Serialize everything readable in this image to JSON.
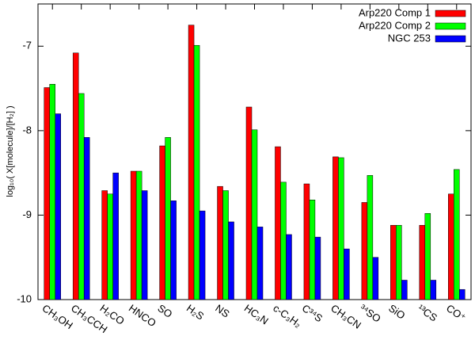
{
  "chart_data": {
    "type": "bar",
    "y_label": "log₁₀( X[molecule]/[H₂] )",
    "categories": [
      "CH₃OH",
      "CH₃CCH",
      "H₂CO",
      "HNCO",
      "SO",
      "H₂S",
      "NS",
      "HC₃N",
      "c-C₃H₂",
      "C³⁴S",
      "CH₃CN",
      "³⁴SO",
      "SiO",
      "¹³CS",
      "CO⁺"
    ],
    "series": [
      {
        "name": "Arp220 Comp 1",
        "color": "#ff0000",
        "values": [
          -7.49,
          -7.08,
          -8.71,
          -8.48,
          -8.18,
          -6.75,
          -8.66,
          -7.72,
          -8.19,
          -8.63,
          -8.31,
          -8.85,
          -9.12,
          -9.12,
          -8.75
        ]
      },
      {
        "name": "Arp220 Comp 2",
        "color": "#00ff00",
        "values": [
          -7.45,
          -7.56,
          -8.75,
          -8.48,
          -8.08,
          -6.99,
          -8.71,
          -7.99,
          -8.61,
          -8.82,
          -8.32,
          -8.53,
          -9.12,
          -8.98,
          -8.46
        ]
      },
      {
        "name": "NGC 253",
        "color": "#0000ff",
        "values": [
          -7.8,
          -8.08,
          -8.5,
          -8.71,
          -8.83,
          -8.95,
          -9.08,
          -9.14,
          -9.23,
          -9.26,
          -9.4,
          -9.5,
          -9.77,
          -9.77,
          -9.88
        ]
      }
    ],
    "ylim": [
      -10,
      -6.5
    ],
    "yticks": [
      -7,
      -8,
      -9,
      -10
    ],
    "legend": "upper right"
  }
}
